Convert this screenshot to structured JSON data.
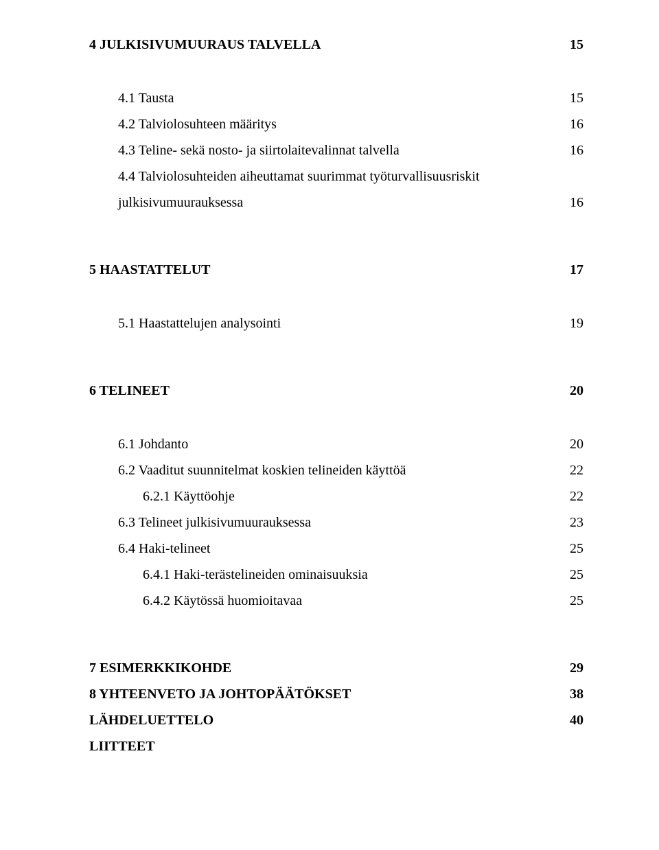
{
  "toc": {
    "s4": {
      "title": "4 JULKISIVUMUURAUS TALVELLA",
      "page": "15",
      "sub": {
        "s41": {
          "title": "4.1 Tausta",
          "page": "15"
        },
        "s42": {
          "title": "4.2 Talviolosuhteen määritys",
          "page": "16"
        },
        "s43": {
          "title": "4.3 Teline- sekä nosto- ja siirtolaitevalinnat talvella",
          "page": "16"
        },
        "s44a": {
          "title": "4.4 Talviolosuhteiden aiheuttamat suurimmat työturvallisuusriskit"
        },
        "s44b": {
          "title": "julkisivumuurauksessa",
          "page": "16"
        }
      }
    },
    "s5": {
      "title": "5 HAASTATTELUT",
      "page": "17",
      "sub": {
        "s51": {
          "title": "5.1 Haastattelujen analysointi",
          "page": "19"
        }
      }
    },
    "s6": {
      "title": "6 TELINEET",
      "page": "20",
      "sub": {
        "s61": {
          "title": "6.1 Johdanto",
          "page": "20"
        },
        "s62": {
          "title": "6.2 Vaaditut suunnitelmat koskien telineiden käyttöä",
          "page": "22"
        },
        "s621": {
          "title": "6.2.1 Käyttöohje",
          "page": "22"
        },
        "s63": {
          "title": "6.3 Telineet julkisivumuurauksessa",
          "page": "23"
        },
        "s64": {
          "title": "6.4 Haki-telineet",
          "page": "25"
        },
        "s641": {
          "title": "6.4.1 Haki-terästelineiden ominaisuuksia",
          "page": "25"
        },
        "s642": {
          "title": "6.4.2 Käytössä huomioitavaa",
          "page": "25"
        }
      }
    },
    "s7": {
      "title": "7 ESIMERKKIKOHDE",
      "page": "29"
    },
    "s8": {
      "title": "8 YHTEENVETO JA JOHTOPÄÄTÖKSET",
      "page": "38"
    },
    "lahde": {
      "title": "LÄHDELUETTELO",
      "page": "40"
    },
    "liitteet": {
      "title": "LIITTEET"
    }
  }
}
